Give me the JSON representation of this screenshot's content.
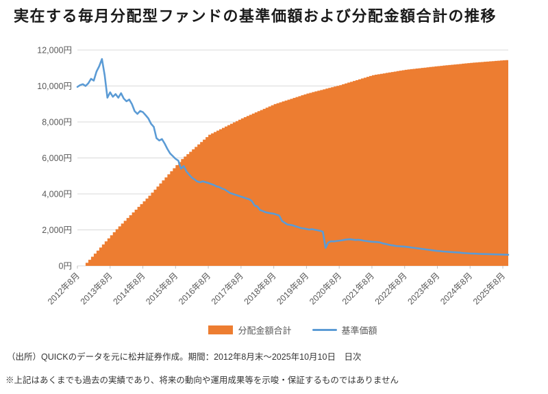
{
  "title": "実在する毎月分配型ファンドの基準価額および分配金額合計の推移",
  "legend": {
    "area_label": "分配金額合計",
    "line_label": "基準価額"
  },
  "footer": {
    "source": "（出所）QUICKのデータを元に松井証券作成。期間：2012年8月末～2025年10月10日　日次",
    "disclaimer": "※上記はあくまでも過去の実績であり、将来の動向や運用成果等を示唆・保証するものではありません"
  },
  "colors": {
    "area": "#ED7D31",
    "line": "#5B9BD5",
    "grid": "#D9D9D9",
    "axis_tick": "#BFBFBF",
    "axis_text": "#595959"
  },
  "chart_data": {
    "type": "area+line",
    "title": "実在する毎月分配型ファンドの基準価額および分配金額合計の推移",
    "x_start": "2012-08",
    "x_step_months": 1,
    "ylim": [
      0,
      12000
    ],
    "grid": "horizontal",
    "legend_position": "bottom-center",
    "y_ticks": [
      {
        "value": 0,
        "label": "0円"
      },
      {
        "value": 2000,
        "label": "2,000円"
      },
      {
        "value": 4000,
        "label": "4,000円"
      },
      {
        "value": 6000,
        "label": "6,000円"
      },
      {
        "value": 8000,
        "label": "8,000円"
      },
      {
        "value": 10000,
        "label": "10,000円"
      },
      {
        "value": 12000,
        "label": "12,000円"
      }
    ],
    "x_ticks": [
      {
        "m": 0,
        "label": "2012年8月"
      },
      {
        "m": 12,
        "label": "2013年8月"
      },
      {
        "m": 24,
        "label": "2014年8月"
      },
      {
        "m": 36,
        "label": "2015年8月"
      },
      {
        "m": 48,
        "label": "2016年8月"
      },
      {
        "m": 60,
        "label": "2017年8月"
      },
      {
        "m": 72,
        "label": "2018年8月"
      },
      {
        "m": 84,
        "label": "2019年8月"
      },
      {
        "m": 96,
        "label": "2020年8月"
      },
      {
        "m": 108,
        "label": "2021年8月"
      },
      {
        "m": 120,
        "label": "2022年8月"
      },
      {
        "m": 132,
        "label": "2023年8月"
      },
      {
        "m": 144,
        "label": "2024年8月"
      },
      {
        "m": 156,
        "label": "2025年8月"
      }
    ],
    "series": [
      {
        "name": "分配金額合計",
        "type": "area-step",
        "values": [
          0,
          0,
          0,
          170,
          340,
          510,
          680,
          850,
          1020,
          1190,
          1360,
          1530,
          1700,
          1870,
          2040,
          2195,
          2350,
          2505,
          2660,
          2815,
          2970,
          3125,
          3280,
          3435,
          3590,
          3745,
          3900,
          4070,
          4240,
          4410,
          4580,
          4750,
          4920,
          5090,
          5260,
          5430,
          5600,
          5770,
          5940,
          6075,
          6210,
          6345,
          6480,
          6615,
          6750,
          6885,
          7020,
          7155,
          7290,
          7366,
          7442,
          7518,
          7594,
          7670,
          7746,
          7822,
          7898,
          7974,
          8050,
          8126,
          8202,
          8268,
          8334,
          8400,
          8466,
          8532,
          8598,
          8664,
          8730,
          8796,
          8862,
          8928,
          8994,
          9043,
          9092,
          9141,
          9190,
          9239,
          9288,
          9337,
          9386,
          9435,
          9484,
          9533,
          9582,
          9621,
          9660,
          9699,
          9738,
          9777,
          9816,
          9855,
          9894,
          9933,
          9972,
          10011,
          10050,
          10096,
          10142,
          10188,
          10234,
          10280,
          10326,
          10372,
          10418,
          10464,
          10510,
          10556,
          10602,
          10627,
          10652,
          10677,
          10702,
          10727,
          10752,
          10777,
          10802,
          10827,
          10852,
          10877,
          10902,
          10919,
          10936,
          10953,
          10970,
          10987,
          11004,
          11021,
          11038,
          11055,
          11072,
          11089,
          11106,
          11121,
          11136,
          11151,
          11166,
          11181,
          11196,
          11211,
          11226,
          11241,
          11256,
          11271,
          11286,
          11298,
          11310,
          11322,
          11334,
          11346,
          11358,
          11370,
          11382,
          11394,
          11406,
          11418,
          11430,
          11440,
          11450
        ]
      },
      {
        "name": "基準価額",
        "type": "line",
        "values": [
          9950,
          10050,
          10100,
          10000,
          10150,
          10400,
          10300,
          10800,
          11100,
          11500,
          10600,
          9350,
          9650,
          9400,
          9550,
          9350,
          9600,
          9300,
          9150,
          9250,
          8990,
          8600,
          8450,
          8610,
          8550,
          8380,
          8200,
          7900,
          7730,
          7100,
          6970,
          7050,
          6800,
          6500,
          6250,
          6100,
          5950,
          5850,
          5400,
          5550,
          5250,
          5070,
          4900,
          4800,
          4690,
          4650,
          4700,
          4650,
          4610,
          4550,
          4500,
          4420,
          4380,
          4300,
          4250,
          4150,
          4050,
          4000,
          3950,
          3900,
          3850,
          3800,
          3750,
          3700,
          3600,
          3350,
          3300,
          3100,
          3050,
          2980,
          2950,
          2920,
          2900,
          2850,
          2800,
          2500,
          2400,
          2300,
          2280,
          2250,
          2200,
          2150,
          2100,
          2080,
          2050,
          2020,
          2040,
          2010,
          1980,
          1950,
          1900,
          1000,
          1300,
          1370,
          1360,
          1380,
          1400,
          1420,
          1450,
          1470,
          1480,
          1460,
          1440,
          1450,
          1430,
          1400,
          1380,
          1360,
          1340,
          1330,
          1320,
          1300,
          1250,
          1220,
          1180,
          1150,
          1130,
          1100,
          1090,
          1080,
          1070,
          1050,
          1030,
          1010,
          990,
          970,
          950,
          930,
          910,
          890,
          870,
          850,
          830,
          820,
          800,
          790,
          780,
          770,
          760,
          750,
          740,
          720,
          710,
          700,
          690,
          685,
          680,
          670,
          665,
          660,
          655,
          650,
          645,
          640,
          635,
          630,
          625,
          620,
          615
        ]
      }
    ]
  }
}
